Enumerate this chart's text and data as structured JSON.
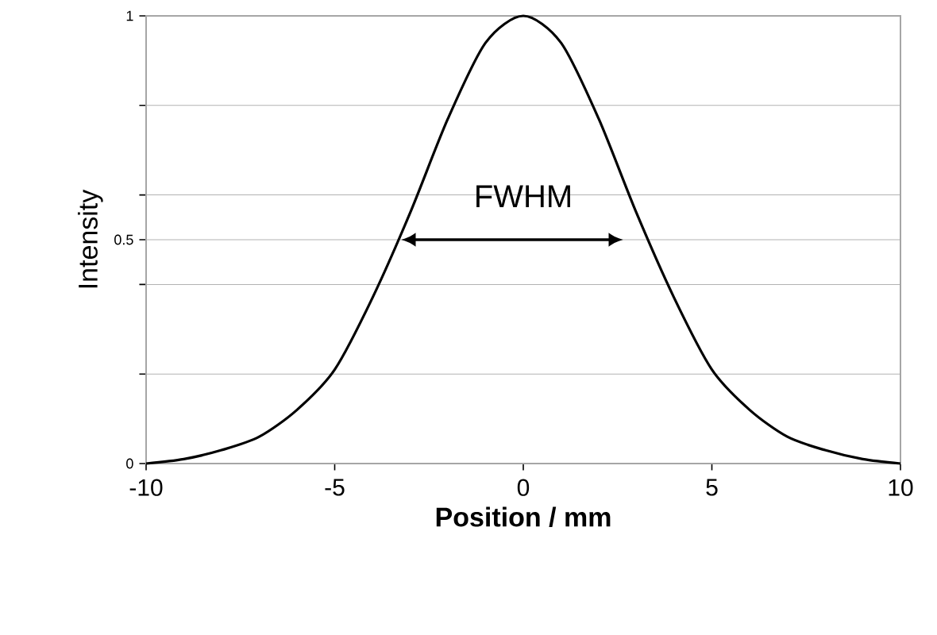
{
  "chart_data": {
    "type": "line",
    "xlabel": "Position / mm",
    "ylabel": "Intensity",
    "x": [
      -10,
      -9,
      -8,
      -7,
      -6,
      -5,
      -4,
      -3,
      -2,
      -1,
      0,
      1,
      2,
      3,
      4,
      5,
      6,
      7,
      8,
      9,
      10
    ],
    "series": [
      {
        "color": "#000000",
        "values": [
          0.0,
          0.01,
          0.03,
          0.06,
          0.12,
          0.21,
          0.37,
          0.56,
          0.77,
          0.94,
          1.0,
          0.94,
          0.77,
          0.56,
          0.37,
          0.21,
          0.12,
          0.06,
          0.03,
          0.01,
          0.0
        ]
      }
    ],
    "xlim": [
      -10,
      10
    ],
    "xticks": [
      -10,
      -5,
      0,
      5,
      10
    ],
    "ylim": [
      0,
      1
    ],
    "yticks": [
      0,
      {
        "value": 0.2,
        "label": null
      },
      {
        "value": 0.4,
        "label": null
      },
      0.5,
      {
        "value": 0.6,
        "label": null
      },
      {
        "value": 0.8,
        "label": null
      },
      1
    ],
    "grid": "y",
    "marker": "none",
    "line_style": "solid",
    "annotations": [
      "FWHM"
    ]
  }
}
